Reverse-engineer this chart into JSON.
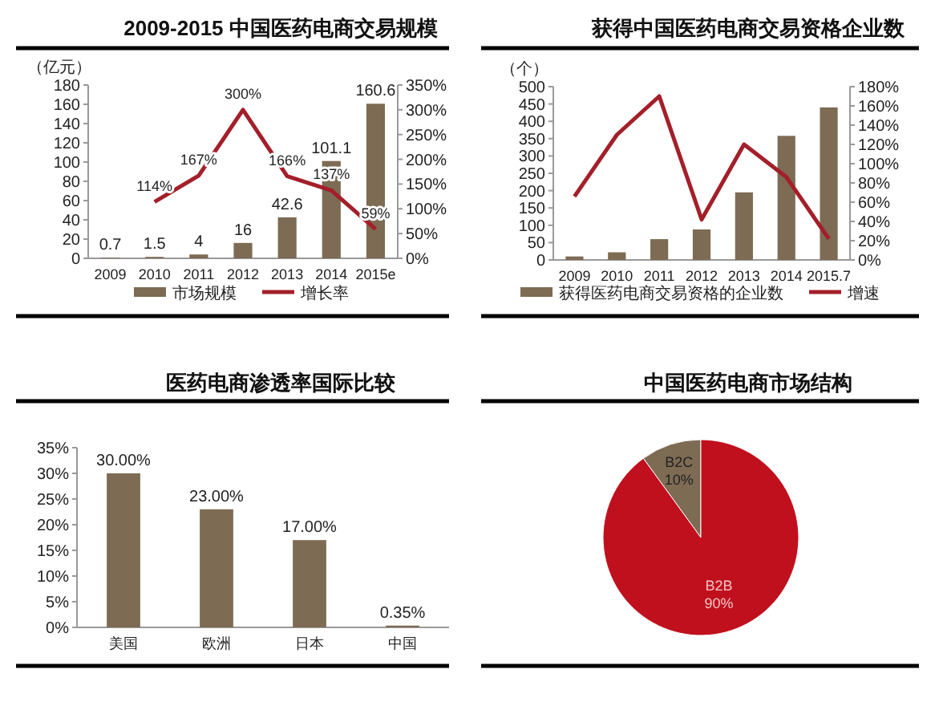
{
  "chart_data": [
    {
      "type": "bar",
      "title": "2009-2015 中国医药电商交易规模",
      "ylabel": "（亿元）",
      "categories": [
        "2009",
        "2010",
        "2011",
        "2012",
        "2013",
        "2014",
        "2015e"
      ],
      "series": [
        {
          "name": "市场规模",
          "type": "bar",
          "color": "#7d6b54",
          "values": [
            0.7,
            1.5,
            4,
            16,
            42.6,
            101.1,
            160.6
          ],
          "value_labels": [
            "0.7",
            "1.5",
            "4",
            "16",
            "42.6",
            "101.1",
            "160.6"
          ]
        },
        {
          "name": "增长率",
          "type": "line",
          "axis": "y2",
          "color": "#a31f2a",
          "values": [
            null,
            114,
            167,
            300,
            166,
            137,
            59
          ],
          "value_labels": [
            null,
            "114%",
            "167%",
            "300%",
            "166%",
            "137%",
            "59%"
          ]
        }
      ],
      "ylim": [
        0,
        180
      ],
      "yticks": [
        0,
        20,
        40,
        60,
        80,
        100,
        120,
        140,
        160,
        180
      ],
      "y2lim": [
        0,
        350
      ],
      "y2ticks": [
        {
          "value": 0,
          "label": "0%"
        },
        {
          "value": 50,
          "label": "50%"
        },
        {
          "value": 100,
          "label": "100%"
        },
        {
          "value": 150,
          "label": "150%"
        },
        {
          "value": 200,
          "label": "200%"
        },
        {
          "value": 250,
          "label": "250%"
        },
        {
          "value": 300,
          "label": "300%"
        },
        {
          "value": 350,
          "label": "350%"
        }
      ],
      "legend": "bottom"
    },
    {
      "type": "bar",
      "title": "获得中国医药电商交易资格企业数",
      "ylabel": "（个）",
      "categories": [
        "2009",
        "2010",
        "2011",
        "2012",
        "2013",
        "2014",
        "2015.7"
      ],
      "series": [
        {
          "name": "获得医药电商交易资格的企业数",
          "type": "bar",
          "color": "#7d6b54",
          "values": [
            10,
            22,
            60,
            88,
            195,
            358,
            440
          ]
        },
        {
          "name": "增速",
          "type": "line",
          "axis": "y2",
          "color": "#a31f2a",
          "values": [
            66,
            130,
            170,
            42,
            120,
            86,
            22
          ]
        }
      ],
      "ylim": [
        0,
        500
      ],
      "yticks": [
        0,
        50,
        100,
        150,
        200,
        250,
        300,
        350,
        400,
        450,
        500
      ],
      "y2lim": [
        0,
        180
      ],
      "y2ticks": [
        {
          "value": 0,
          "label": "0%"
        },
        {
          "value": 20,
          "label": "20%"
        },
        {
          "value": 40,
          "label": "40%"
        },
        {
          "value": 60,
          "label": "60%"
        },
        {
          "value": 80,
          "label": "80%"
        },
        {
          "value": 100,
          "label": "100%"
        },
        {
          "value": 120,
          "label": "120%"
        },
        {
          "value": 140,
          "label": "140%"
        },
        {
          "value": 160,
          "label": "160%"
        },
        {
          "value": 180,
          "label": "180%"
        }
      ],
      "legend": "bottom"
    },
    {
      "type": "bar",
      "title": "医药电商渗透率国际比较",
      "categories": [
        "美国",
        "欧洲",
        "日本",
        "中国"
      ],
      "series": [
        {
          "type": "bar",
          "color": "#7d6b54",
          "values": [
            30,
            23,
            17,
            0.35
          ],
          "value_labels": [
            "30.00%",
            "23.00%",
            "17.00%",
            "0.35%"
          ]
        }
      ],
      "ylim": [
        0,
        35
      ],
      "yticks": [
        {
          "value": 0,
          "label": "0%"
        },
        {
          "value": 5,
          "label": "5%"
        },
        {
          "value": 10,
          "label": "10%"
        },
        {
          "value": 15,
          "label": "15%"
        },
        {
          "value": 20,
          "label": "20%"
        },
        {
          "value": 25,
          "label": "25%"
        },
        {
          "value": 30,
          "label": "30%"
        },
        {
          "value": 35,
          "label": "35%"
        }
      ]
    },
    {
      "type": "pie",
      "title": "中国医药电商市场结构",
      "categories": [
        "B2C",
        "B2B"
      ],
      "values": [
        10,
        90
      ],
      "colors": [
        "#7d6b54",
        "#c0101d"
      ],
      "value_labels": [
        "10%",
        "90%"
      ]
    }
  ]
}
